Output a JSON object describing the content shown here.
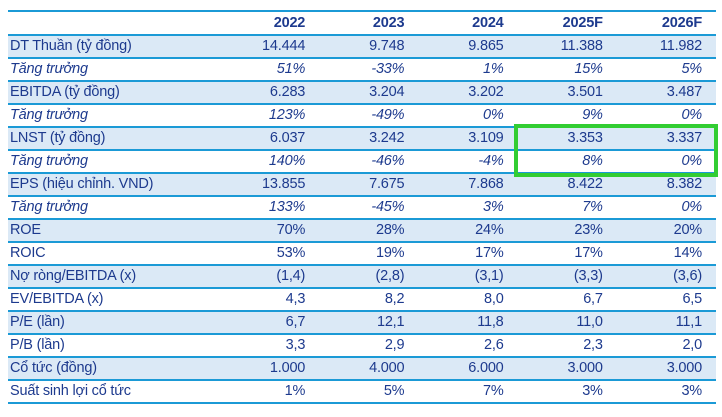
{
  "palette": {
    "text": "#1d3a8e",
    "grid_line": "#1b9ad6",
    "shaded_row_bg": "#dbe9f6",
    "highlight_border": "#32cd32",
    "background": "#ffffff"
  },
  "table": {
    "columns": [
      "",
      "2022",
      "2023",
      "2024",
      "2025F",
      "2026F"
    ],
    "rows": [
      {
        "label": "DT Thuần (tỷ đồng)",
        "values": [
          "14.444",
          "9.748",
          "9.865",
          "11.388",
          "11.982"
        ],
        "italic": false,
        "shaded": true
      },
      {
        "label": "Tăng trưởng",
        "values": [
          "51%",
          "-33%",
          "1%",
          "15%",
          "5%"
        ],
        "italic": true,
        "shaded": false
      },
      {
        "label": "EBITDA (tỷ đồng)",
        "values": [
          "6.283",
          "3.204",
          "3.202",
          "3.501",
          "3.487"
        ],
        "italic": false,
        "shaded": true
      },
      {
        "label": "Tăng trưởng",
        "values": [
          "123%",
          "-49%",
          "0%",
          "9%",
          "0%"
        ],
        "italic": true,
        "shaded": false
      },
      {
        "label": "LNST (tỷ đồng)",
        "values": [
          "6.037",
          "3.242",
          "3.109",
          "3.353",
          "3.337"
        ],
        "italic": false,
        "shaded": true
      },
      {
        "label": "Tăng trưởng",
        "values": [
          "140%",
          "-46%",
          "-4%",
          "8%",
          "0%"
        ],
        "italic": true,
        "shaded": false
      },
      {
        "label": "EPS (hiệu chỉnh. VND)",
        "values": [
          "13.855",
          "7.675",
          "7.868",
          "8.422",
          "8.382"
        ],
        "italic": false,
        "shaded": true
      },
      {
        "label": "Tăng trưởng",
        "values": [
          "133%",
          "-45%",
          "3%",
          "7%",
          "0%"
        ],
        "italic": true,
        "shaded": false
      },
      {
        "label": "ROE",
        "values": [
          "70%",
          "28%",
          "24%",
          "23%",
          "20%"
        ],
        "italic": false,
        "shaded": true
      },
      {
        "label": "ROIC",
        "values": [
          "53%",
          "19%",
          "17%",
          "17%",
          "14%"
        ],
        "italic": false,
        "shaded": false
      },
      {
        "label": "Nợ ròng/EBITDA (x)",
        "values": [
          "(1,4)",
          "(2,8)",
          "(3,1)",
          "(3,3)",
          "(3,6)"
        ],
        "italic": false,
        "shaded": true
      },
      {
        "label": "EV/EBITDA (x)",
        "values": [
          "4,3",
          "8,2",
          "8,0",
          "6,7",
          "6,5"
        ],
        "italic": false,
        "shaded": false
      },
      {
        "label": "P/E (lần)",
        "values": [
          "6,7",
          "12,1",
          "11,8",
          "11,0",
          "11,1"
        ],
        "italic": false,
        "shaded": true
      },
      {
        "label": "P/B (lần)",
        "values": [
          "3,3",
          "2,9",
          "2,6",
          "2,3",
          "2,0"
        ],
        "italic": false,
        "shaded": false
      },
      {
        "label": "Cổ tức (đồng)",
        "values": [
          "1.000",
          "4.000",
          "6.000",
          "3.000",
          "3.000"
        ],
        "italic": false,
        "shaded": true
      },
      {
        "label": "Suất sinh lợi cổ tức",
        "values": [
          "1%",
          "5%",
          "7%",
          "3%",
          "3%"
        ],
        "italic": false,
        "shaded": false
      }
    ],
    "highlight": {
      "row_labels": [
        "LNST (tỷ đồng)",
        "Tăng trưởng"
      ],
      "column_labels": [
        "2025F",
        "2026F"
      ],
      "row_indexes": [
        4,
        5
      ],
      "value_column_indexes": [
        3,
        4
      ],
      "highlighted_values": [
        [
          "3.353",
          "3.337"
        ],
        [
          "8%",
          "0%"
        ]
      ]
    }
  }
}
